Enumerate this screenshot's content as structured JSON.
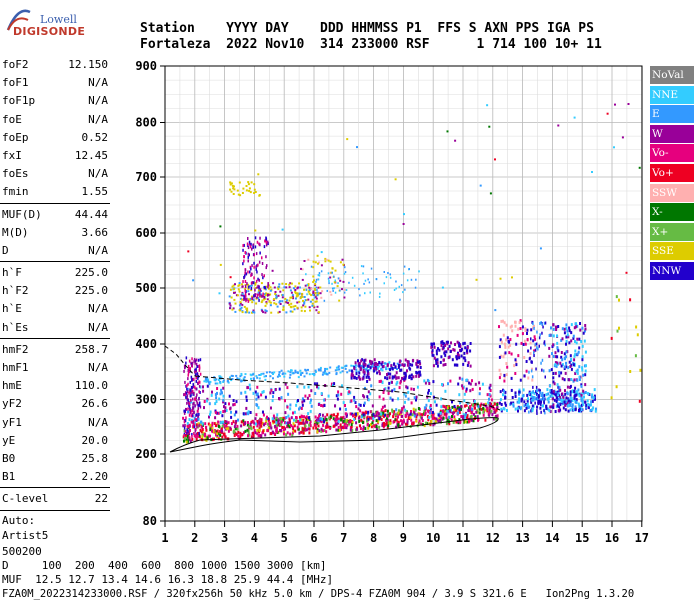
{
  "logo": {
    "brand": "Lowell",
    "product": "DIGISONDE"
  },
  "header": {
    "line1": "Station    YYYY DAY    DDD HHMMSS P1  FFS S AXN PPS IGA PS",
    "line2": "Fortaleza  2022 Nov10  314 233000 RSF      1 714 100 10+ 11"
  },
  "params": {
    "group1": [
      {
        "label": "foF2",
        "value": "12.150"
      },
      {
        "label": "foF1",
        "value": "N/A"
      },
      {
        "label": "foF1p",
        "value": "N/A"
      },
      {
        "label": "foE",
        "value": "N/A"
      },
      {
        "label": "foEp",
        "value": "0.52"
      },
      {
        "label": "fxI",
        "value": "12.45"
      },
      {
        "label": "foEs",
        "value": "N/A"
      },
      {
        "label": "fmin",
        "value": "1.55"
      }
    ],
    "group2": [
      {
        "label": "MUF(D)",
        "value": "44.44"
      },
      {
        "label": "M(D)",
        "value": "3.66"
      },
      {
        "label": "D",
        "value": "N/A"
      }
    ],
    "group3": [
      {
        "label": "h`F",
        "value": "225.0"
      },
      {
        "label": "h`F2",
        "value": "225.0"
      },
      {
        "label": "h`E",
        "value": "N/A"
      },
      {
        "label": "h`Es",
        "value": "N/A"
      }
    ],
    "group4": [
      {
        "label": "hmF2",
        "value": "258.7"
      },
      {
        "label": "hmF1",
        "value": "N/A"
      },
      {
        "label": "hmE",
        "value": "110.0"
      },
      {
        "label": "yF2",
        "value": "26.6"
      },
      {
        "label": "yF1",
        "value": "N/A"
      },
      {
        "label": "yE",
        "value": "20.0"
      },
      {
        "label": "B0",
        "value": "25.8"
      },
      {
        "label": "B1",
        "value": "2.20"
      }
    ],
    "group5": [
      {
        "label": "C-level",
        "value": "22"
      }
    ],
    "auto_lines": [
      "Auto:",
      "Artist5",
      "500200"
    ]
  },
  "legend": [
    {
      "label": "NoVal",
      "color": "#808080"
    },
    {
      "label": "NNE",
      "color": "#33ccff"
    },
    {
      "label": "E",
      "color": "#3399ff"
    },
    {
      "label": "W",
      "color": "#990099"
    },
    {
      "label": "Vo-",
      "color": "#e6007e"
    },
    {
      "label": "Vo+",
      "color": "#ee0022"
    },
    {
      "label": "SSW",
      "color": "#ffb0b0"
    },
    {
      "label": "X-",
      "color": "#007700"
    },
    {
      "label": "X+",
      "color": "#66bb44"
    },
    {
      "label": "SSE",
      "color": "#ddcc00"
    },
    {
      "label": "NNW",
      "color": "#2200cc"
    }
  ],
  "axes": {
    "y_ticks": [
      "900",
      "800",
      "700",
      "600",
      "500",
      "400",
      "300",
      "200",
      "80"
    ],
    "x_ticks": [
      "1",
      "2",
      "3",
      "4",
      "5",
      "6",
      "7",
      "8",
      "9",
      "10",
      "11",
      "12",
      "13",
      "14",
      "15",
      "16",
      "17"
    ]
  },
  "footer": {
    "line1": "D     100  200  400  600  800 1000 1500 3000 [km]",
    "line2": "MUF  12.5 12.7 13.4 14.6 16.3 18.8 25.9 44.4 [MHz]",
    "line3": "FZA0M_2022314233000.RSF / 320fx256h 50 kHz 5.0 km / DPS-4 FZA0M 904 / 3.9 S 321.6 E   Ion2Png 1.3.20"
  }
}
